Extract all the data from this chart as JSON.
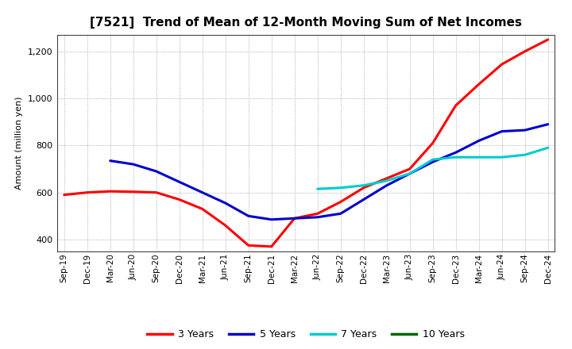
{
  "title": "[7521]  Trend of Mean of 12-Month Moving Sum of Net Incomes",
  "ylabel": "Amount (million yen)",
  "background_color": "#ffffff",
  "plot_bg_color": "#ffffff",
  "grid_color": "#999999",
  "x_labels": [
    "Sep-19",
    "Dec-19",
    "Mar-20",
    "Jun-20",
    "Sep-20",
    "Dec-20",
    "Mar-21",
    "Jun-21",
    "Sep-21",
    "Dec-21",
    "Mar-22",
    "Jun-22",
    "Sep-22",
    "Dec-22",
    "Mar-23",
    "Jun-23",
    "Sep-23",
    "Dec-23",
    "Mar-24",
    "Jun-24",
    "Sep-24",
    "Dec-24"
  ],
  "ylim": [
    350,
    1270
  ],
  "yticks": [
    400,
    600,
    800,
    1000,
    1200
  ],
  "series": {
    "3 Years": {
      "color": "#ff0000",
      "values": [
        590,
        600,
        605,
        603,
        600,
        570,
        530,
        460,
        375,
        370,
        490,
        510,
        560,
        620,
        660,
        700,
        810,
        970,
        1060,
        1145,
        1200,
        1250
      ]
    },
    "5 Years": {
      "color": "#0000cc",
      "values": [
        null,
        null,
        735,
        720,
        690,
        645,
        600,
        555,
        500,
        485,
        490,
        495,
        510,
        570,
        630,
        680,
        730,
        770,
        820,
        860,
        865,
        890
      ]
    },
    "7 Years": {
      "color": "#00cccc",
      "values": [
        null,
        null,
        null,
        null,
        null,
        null,
        null,
        null,
        null,
        null,
        null,
        615,
        620,
        630,
        650,
        680,
        740,
        750,
        750,
        750,
        760,
        790
      ]
    },
    "10 Years": {
      "color": "#006600",
      "values": [
        null,
        null,
        null,
        null,
        null,
        null,
        null,
        null,
        null,
        null,
        null,
        null,
        null,
        null,
        null,
        null,
        null,
        null,
        null,
        null,
        null,
        null
      ]
    }
  },
  "legend_entries": [
    "3 Years",
    "5 Years",
    "7 Years",
    "10 Years"
  ],
  "legend_colors": [
    "#ff0000",
    "#0000cc",
    "#00cccc",
    "#006600"
  ],
  "title_fontsize": 11,
  "ylabel_fontsize": 8,
  "tick_fontsize": 8,
  "linewidth": 2.2
}
